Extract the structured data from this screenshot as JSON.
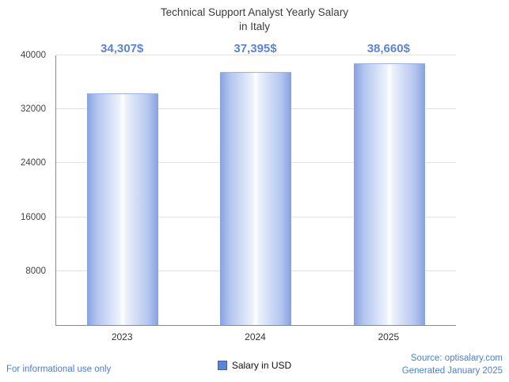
{
  "title": {
    "line1": "Technical Support Analyst Yearly Salary",
    "line2": "in Italy"
  },
  "chart_data": {
    "type": "bar",
    "title": "Technical Support Analyst Yearly Salary in Italy",
    "categories": [
      "2023",
      "2024",
      "2025"
    ],
    "values": [
      34307,
      37395,
      38660
    ],
    "value_labels": [
      "34,307$",
      "37,395$",
      "38,660$"
    ],
    "series_name": "Salary in USD",
    "xlabel": "",
    "ylabel": "",
    "ylim": [
      0,
      40000
    ],
    "yticks": [
      "8000",
      "16000",
      "24000",
      "32000",
      "40000"
    ],
    "grid": "horizontal",
    "legend_position": "bottom"
  },
  "legend": {
    "label": "Salary in USD",
    "color": "#5b84d9"
  },
  "footer": {
    "left": "For informational use only",
    "source": "Source: optisalary.com",
    "generated": "Generated January 2025"
  },
  "colors": {
    "accent_blue": "#5b84d9",
    "value_label_blue": "#5b84d9",
    "bar_edge": "#85a1df",
    "bar_center": "#ffffff",
    "axis_gray": "#8a8a8a",
    "gridline_gray": "#e3e3e3"
  }
}
